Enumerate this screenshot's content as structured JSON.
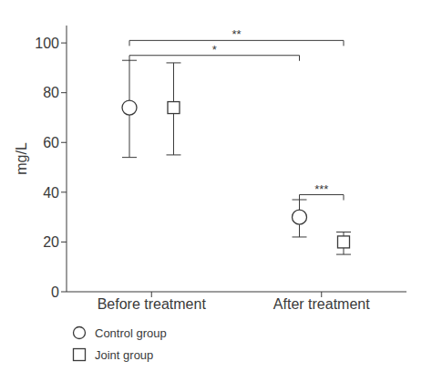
{
  "chart_data": {
    "type": "scatter",
    "ylabel": "mg/L",
    "categories": [
      "Before treatment",
      "After treatment"
    ],
    "series": [
      {
        "name": "Control group",
        "marker": "circle",
        "values": [
          74,
          30
        ],
        "errors_lower": [
          20,
          8
        ],
        "errors_upper": [
          19,
          7
        ]
      },
      {
        "name": "Joint group",
        "marker": "square",
        "values": [
          74,
          20
        ],
        "errors_lower": [
          19,
          5
        ],
        "errors_upper": [
          18,
          4
        ]
      }
    ],
    "color": "#3a3a3a",
    "ylim": [
      0,
      107
    ],
    "yticks": [
      0,
      20,
      40,
      60,
      80,
      100
    ],
    "grid": false,
    "legend": "lower left",
    "annotations": [
      {
        "label": "*",
        "from": {
          "category": "Before treatment",
          "series": "Control group"
        },
        "to": {
          "category": "After treatment",
          "series": "Control group"
        },
        "y": 95
      },
      {
        "label": "**",
        "from": {
          "category": "Before treatment",
          "series": "Control group"
        },
        "to": {
          "category": "After treatment",
          "series": "Joint group"
        },
        "y": 101
      },
      {
        "label": "***",
        "from": {
          "category": "After treatment",
          "series": "Control group"
        },
        "to": {
          "category": "After treatment",
          "series": "Joint group"
        },
        "y": 39
      }
    ]
  }
}
